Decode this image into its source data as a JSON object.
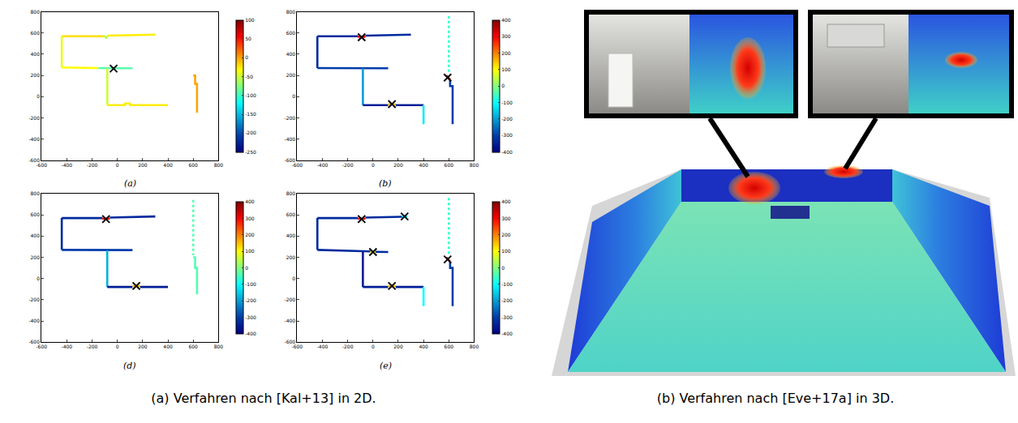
{
  "chart_data": [
    {
      "type": "line",
      "label": "(a)",
      "xlim": [
        -600,
        800
      ],
      "ylim": [
        -600,
        800
      ],
      "xticks": [
        -600,
        -400,
        -200,
        0,
        200,
        400,
        600,
        800
      ],
      "yticks": [
        -600,
        -400,
        -200,
        0,
        200,
        400,
        600,
        800
      ],
      "color_range": [
        -250,
        100
      ],
      "color_ticks": [
        -250,
        -200,
        -150,
        -100,
        -50,
        0,
        50,
        100
      ],
      "segments": [
        {
          "x": [
            -440,
            -100
          ],
          "y": [
            570,
            570
          ],
          "value": -20
        },
        {
          "x": [
            -100,
            -90,
            -80
          ],
          "y": [
            570,
            555,
            572
          ],
          "value": -60
        },
        {
          "x": [
            -80,
            300
          ],
          "y": [
            575,
            585
          ],
          "value": -25
        },
        {
          "x": [
            -440,
            -440
          ],
          "y": [
            570,
            275
          ],
          "value": -40
        },
        {
          "x": [
            -440,
            -150
          ],
          "y": [
            275,
            270
          ],
          "value": -30
        },
        {
          "x": [
            -150,
            120
          ],
          "y": [
            270,
            268
          ],
          "value": -90
        },
        {
          "x": [
            -80,
            -80
          ],
          "y": [
            265,
            -80
          ],
          "value": -50
        },
        {
          "x": [
            -80,
            60,
            60,
            100,
            100,
            400
          ],
          "y": [
            -80,
            -80,
            -65,
            -65,
            -80,
            -80
          ],
          "value": -25
        },
        {
          "x": [
            600,
            615,
            615,
            630,
            630
          ],
          "y": [
            200,
            200,
            120,
            120,
            -150
          ],
          "value": 0
        }
      ],
      "markers": {
        "x": [
          -30
        ],
        "y": [
          265
        ],
        "marker": "x"
      }
    },
    {
      "type": "line",
      "label": "(b)",
      "xlim": [
        -600,
        800
      ],
      "ylim": [
        -600,
        800
      ],
      "xticks": [
        -600,
        -400,
        -200,
        0,
        200,
        400,
        600,
        800
      ],
      "yticks": [
        -600,
        -400,
        -200,
        0,
        200,
        400,
        600,
        800
      ],
      "color_range": [
        -400,
        400
      ],
      "color_ticks": [
        -400,
        -300,
        -200,
        -100,
        0,
        100,
        200,
        300,
        400
      ],
      "segments": [
        {
          "x": [
            -440,
            -120
          ],
          "y": [
            570,
            570
          ],
          "value": -330
        },
        {
          "x": [
            -120,
            -60
          ],
          "y": [
            565,
            565
          ],
          "value": 300
        },
        {
          "x": [
            -60,
            300
          ],
          "y": [
            575,
            585
          ],
          "value": -330
        },
        {
          "x": [
            -440,
            -440
          ],
          "y": [
            570,
            270
          ],
          "value": -330
        },
        {
          "x": [
            -440,
            120
          ],
          "y": [
            270,
            268
          ],
          "value": -300
        },
        {
          "x": [
            -80,
            -80
          ],
          "y": [
            265,
            -80
          ],
          "value": -200
        },
        {
          "x": [
            -80,
            120
          ],
          "y": [
            -80,
            -80
          ],
          "value": -350
        },
        {
          "x": [
            120,
            180
          ],
          "y": [
            -72,
            -72
          ],
          "value": 150
        },
        {
          "x": [
            180,
            400
          ],
          "y": [
            -80,
            -80
          ],
          "value": -350
        },
        {
          "x": [
            400,
            400
          ],
          "y": [
            -80,
            -260
          ],
          "value": -120
        },
        {
          "x": [
            600,
            600
          ],
          "y": [
            760,
            230
          ],
          "value": -60,
          "line_style": "dot"
        },
        {
          "x": [
            580,
            610
          ],
          "y": [
            200,
            160
          ],
          "value": 300
        },
        {
          "x": [
            610,
            610,
            630,
            630
          ],
          "y": [
            160,
            100,
            100,
            -260
          ],
          "value": -300
        }
      ],
      "markers": {
        "x": [
          -90,
          150,
          590
        ],
        "y": [
          560,
          -70,
          180
        ],
        "marker": "x"
      }
    },
    {
      "type": "line",
      "label": "(d)",
      "xlim": [
        -600,
        800
      ],
      "ylim": [
        -600,
        800
      ],
      "xticks": [
        -600,
        -400,
        -200,
        0,
        200,
        400,
        600,
        800
      ],
      "yticks": [
        -600,
        -400,
        -200,
        0,
        200,
        400,
        600,
        800
      ],
      "color_range": [
        -400,
        400
      ],
      "color_ticks": [
        -400,
        -300,
        -200,
        -100,
        0,
        100,
        200,
        300,
        400
      ],
      "segments": [
        {
          "x": [
            -440,
            -120
          ],
          "y": [
            570,
            570
          ],
          "value": -330
        },
        {
          "x": [
            -120,
            -60
          ],
          "y": [
            565,
            565
          ],
          "value": 300
        },
        {
          "x": [
            -60,
            300
          ],
          "y": [
            575,
            585
          ],
          "value": -330
        },
        {
          "x": [
            -440,
            -440
          ],
          "y": [
            570,
            270
          ],
          "value": -330
        },
        {
          "x": [
            -440,
            120
          ],
          "y": [
            270,
            268
          ],
          "value": -300
        },
        {
          "x": [
            -80,
            -80
          ],
          "y": [
            265,
            -80
          ],
          "value": -180
        },
        {
          "x": [
            -80,
            120
          ],
          "y": [
            -80,
            -80
          ],
          "value": -350
        },
        {
          "x": [
            120,
            180
          ],
          "y": [
            -72,
            -72
          ],
          "value": 150
        },
        {
          "x": [
            180,
            400
          ],
          "y": [
            -80,
            -80
          ],
          "value": -350
        },
        {
          "x": [
            600,
            600
          ],
          "y": [
            740,
            220
          ],
          "value": -40,
          "line_style": "dot"
        },
        {
          "x": [
            600,
            615,
            615,
            630,
            630
          ],
          "y": [
            200,
            200,
            100,
            100,
            -150
          ],
          "value": -40
        }
      ],
      "markers": {
        "x": [
          -90,
          150
        ],
        "y": [
          560,
          -70
        ],
        "marker": "x"
      }
    },
    {
      "type": "line",
      "label": "(e)",
      "xlim": [
        -600,
        800
      ],
      "ylim": [
        -600,
        800
      ],
      "xticks": [
        -600,
        -400,
        -200,
        0,
        200,
        400,
        600,
        800
      ],
      "yticks": [
        -600,
        -400,
        -200,
        0,
        200,
        400,
        600,
        800
      ],
      "color_range": [
        -400,
        400
      ],
      "color_ticks": [
        -400,
        -300,
        -200,
        -100,
        0,
        100,
        200,
        300,
        400
      ],
      "segments": [
        {
          "x": [
            -440,
            -120
          ],
          "y": [
            570,
            570
          ],
          "value": -330
        },
        {
          "x": [
            -120,
            -60
          ],
          "y": [
            565,
            565
          ],
          "value": 300
        },
        {
          "x": [
            -60,
            230
          ],
          "y": [
            575,
            582
          ],
          "value": -330
        },
        {
          "x": [
            230,
            270
          ],
          "y": [
            584,
            584
          ],
          "value": -100
        },
        {
          "x": [
            -440,
            -440
          ],
          "y": [
            570,
            270
          ],
          "value": -330
        },
        {
          "x": [
            -440,
            -20
          ],
          "y": [
            270,
            255
          ],
          "value": -330
        },
        {
          "x": [
            -20,
            20
          ],
          "y": [
            252,
            252
          ],
          "value": 100
        },
        {
          "x": [
            20,
            120
          ],
          "y": [
            252,
            250
          ],
          "value": -330
        },
        {
          "x": [
            -80,
            -80
          ],
          "y": [
            250,
            -80
          ],
          "value": -350
        },
        {
          "x": [
            -80,
            120
          ],
          "y": [
            -80,
            -80
          ],
          "value": -350
        },
        {
          "x": [
            120,
            180
          ],
          "y": [
            -72,
            -72
          ],
          "value": 150
        },
        {
          "x": [
            180,
            400
          ],
          "y": [
            -80,
            -80
          ],
          "value": -350
        },
        {
          "x": [
            400,
            400
          ],
          "y": [
            -80,
            -260
          ],
          "value": -100
        },
        {
          "x": [
            600,
            600
          ],
          "y": [
            760,
            230
          ],
          "value": -60,
          "line_style": "dot"
        },
        {
          "x": [
            580,
            610
          ],
          "y": [
            200,
            160
          ],
          "value": 300
        },
        {
          "x": [
            610,
            610,
            630,
            630
          ],
          "y": [
            160,
            100,
            100,
            -260
          ],
          "value": -300
        }
      ],
      "markers": {
        "x": [
          -90,
          250,
          0,
          150,
          590
        ],
        "y": [
          560,
          585,
          250,
          -70,
          180
        ],
        "marker": "x"
      }
    }
  ],
  "captions": [
    "(a) Verfahren nach [Kal+13] in 2D.",
    "(b) Verfahren nach [Eve+17a] in 3D."
  ]
}
